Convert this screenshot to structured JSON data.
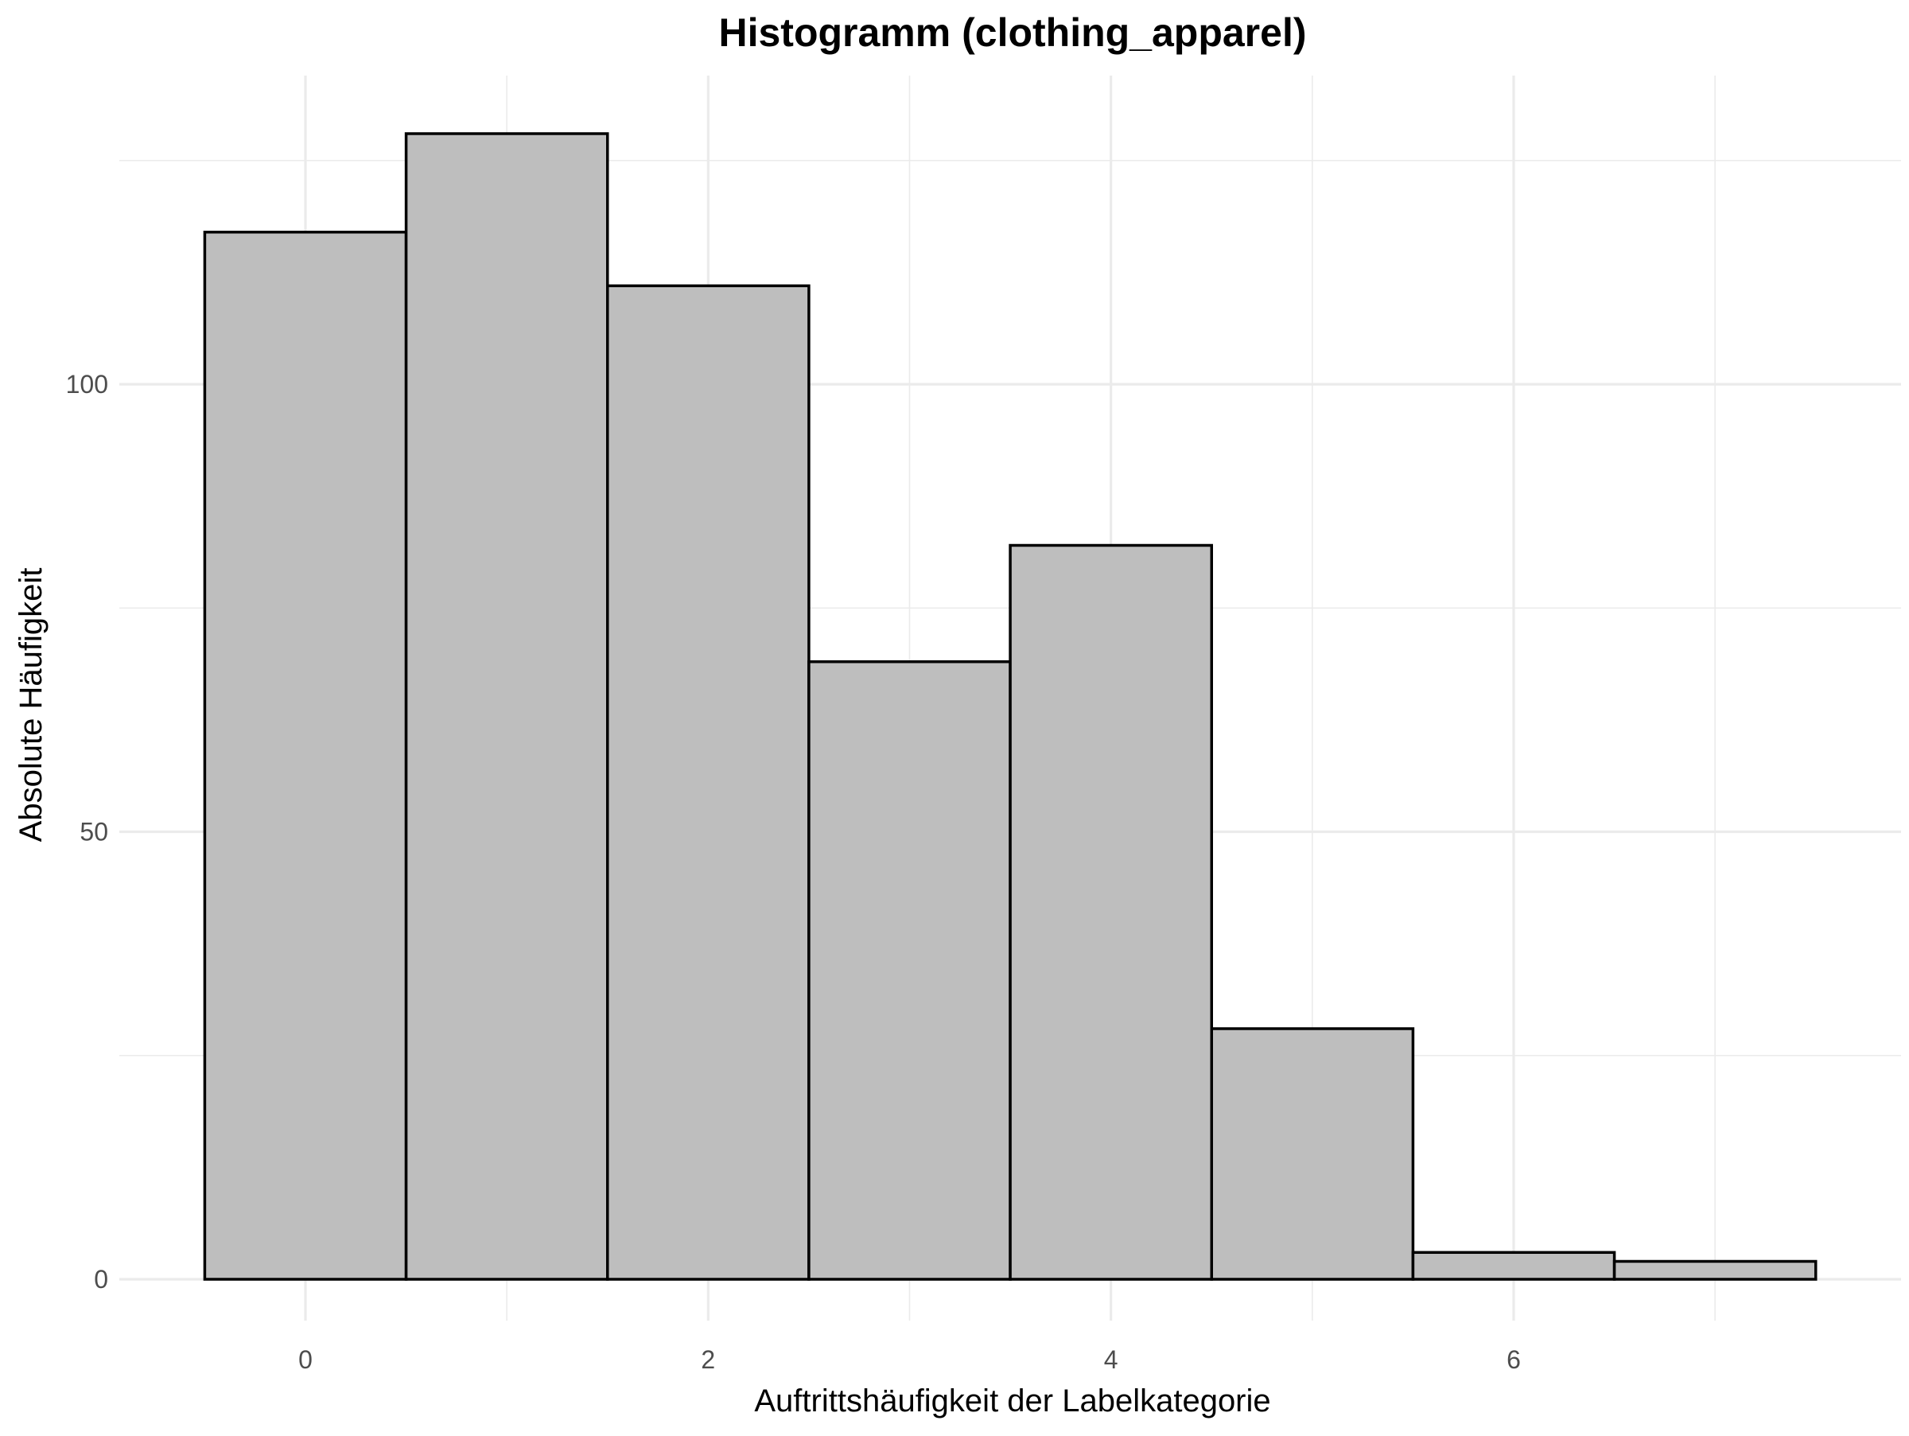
{
  "chart_data": {
    "type": "bar",
    "title": "Histogramm (clothing_apparel)",
    "xlabel": "Auftrittshäufigkeit der Labelkategorie",
    "ylabel": "Absolute Häufigkeit",
    "bin_width": 1,
    "x": [
      0,
      1,
      2,
      3,
      4,
      5,
      6,
      7
    ],
    "values": [
      117,
      128,
      111,
      69,
      82,
      28,
      3,
      2
    ],
    "xlim": [
      -1,
      8
    ],
    "ylim": [
      0,
      130
    ],
    "x_ticks": [
      0,
      2,
      4,
      6
    ],
    "x_tick_labels": [
      "0",
      "2",
      "4",
      "6"
    ],
    "y_ticks": [
      0,
      50,
      100
    ],
    "y_tick_labels": [
      "0",
      "50",
      "100"
    ],
    "bar_fill": "#bebebe",
    "bar_outline": "#000000",
    "grid": true,
    "legend": "none"
  }
}
